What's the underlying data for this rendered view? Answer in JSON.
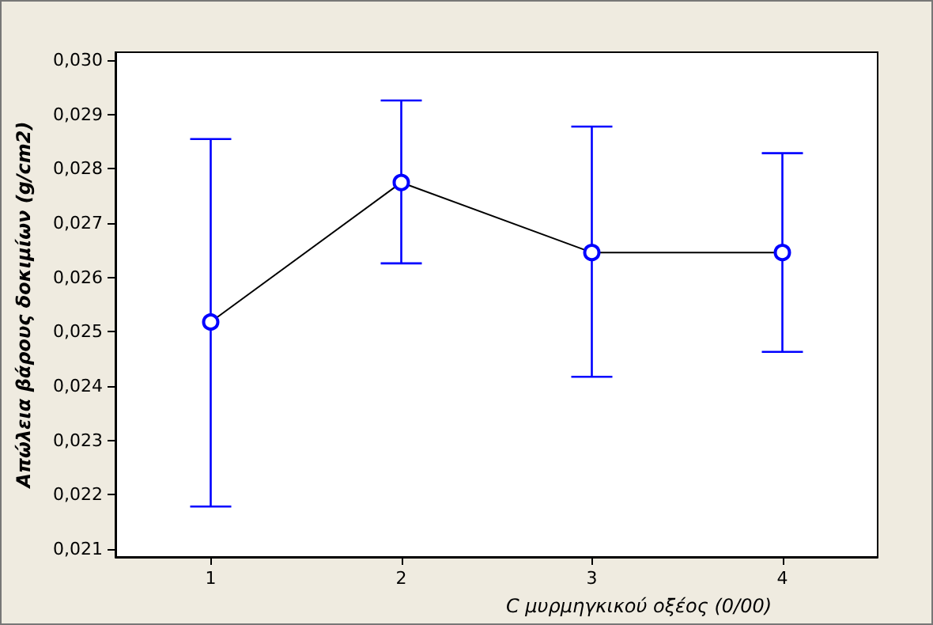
{
  "chart_data": {
    "type": "line",
    "xlabel": "C μυρμηγκικού οξέος (0/00)",
    "ylabel": "Απώλεια βάρους δοκιμίων (g/cm2)",
    "categories": [
      "1",
      "2",
      "3",
      "4"
    ],
    "series": [
      {
        "color": "#0000ff",
        "values": [
          0.02518,
          0.02775,
          0.02646,
          0.02646
        ],
        "errors": [
          [
            0.02178,
            0.02855
          ],
          [
            0.02626,
            0.02926
          ],
          [
            0.02417,
            0.02878
          ],
          [
            0.02463,
            0.02829
          ]
        ]
      }
    ],
    "ylim": [
      0.02085,
      0.03015
    ],
    "yticks": [
      {
        "value": 0.021,
        "label": "0,021"
      },
      {
        "value": 0.022,
        "label": "0,022"
      },
      {
        "value": 0.023,
        "label": "0,023"
      },
      {
        "value": 0.024,
        "label": "0,024"
      },
      {
        "value": 0.025,
        "label": "0,025"
      },
      {
        "value": 0.026,
        "label": "0,026"
      },
      {
        "value": 0.027,
        "label": "0,027"
      },
      {
        "value": 0.028,
        "label": "0,028"
      },
      {
        "value": 0.029,
        "label": "0,029"
      },
      {
        "value": 0.03,
        "label": "0,030"
      }
    ],
    "grid": false,
    "marker": "circle",
    "line_style": "solid"
  }
}
